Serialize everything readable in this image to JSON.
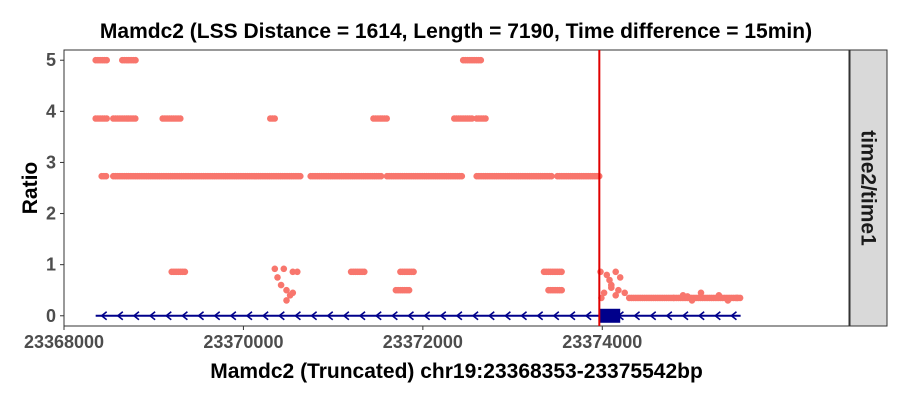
{
  "chart_data": {
    "type": "scatter",
    "title": "Mamdc2 (LSS Distance = 1614, Length = 7190, Time difference = 15min)",
    "xlabel": "Mamdc2 (Truncated) chr19:23368353-23375542bp",
    "ylabel": "Ratio",
    "facet_label": "time2/time1",
    "xlim": [
      23368000,
      23376750
    ],
    "ylim": [
      -0.2,
      5.2
    ],
    "x_ticks": [
      23368000,
      23370000,
      23372000,
      23374000
    ],
    "x_tick_labels": [
      "23368000",
      "23370000",
      "23372000",
      "23374000"
    ],
    "y_ticks": [
      0,
      1,
      2,
      3,
      4,
      5
    ],
    "y_tick_labels": [
      "0",
      "1",
      "2",
      "3",
      "4",
      "5"
    ],
    "grid": false,
    "colors": {
      "points": "#f8766d",
      "vline": "#e00000",
      "gene": "#00008b",
      "strip_bg": "#d9d9d9",
      "tick_text": "#4d4d4d"
    },
    "vline_x": 23373967,
    "gene": {
      "start": 23368353,
      "end": 23375542,
      "y": 0,
      "strand": "-",
      "exon": {
        "start": 23373967,
        "end": 23374200
      }
    },
    "series": [
      {
        "segments": [
          {
            "x0": 23368353,
            "x1": 23368500,
            "y": 5.0
          },
          {
            "x0": 23368650,
            "x1": 23368800,
            "y": 5.0
          },
          {
            "x0": 23368353,
            "x1": 23368500,
            "y": 3.86
          },
          {
            "x0": 23368550,
            "x1": 23368800,
            "y": 3.86
          },
          {
            "x0": 23369100,
            "x1": 23369300,
            "y": 3.86
          },
          {
            "x0": 23370300,
            "x1": 23370350,
            "y": 3.86
          },
          {
            "x0": 23371450,
            "x1": 23371600,
            "y": 3.86
          },
          {
            "x0": 23372350,
            "x1": 23372550,
            "y": 3.86
          },
          {
            "x0": 23372600,
            "x1": 23372700,
            "y": 3.86
          },
          {
            "x0": 23372450,
            "x1": 23372650,
            "y": 5.0
          },
          {
            "x0": 23368420,
            "x1": 23368470,
            "y": 2.73
          },
          {
            "x0": 23368550,
            "x1": 23370650,
            "y": 2.73
          },
          {
            "x0": 23370750,
            "x1": 23371550,
            "y": 2.73
          },
          {
            "x0": 23371600,
            "x1": 23372450,
            "y": 2.73
          },
          {
            "x0": 23372600,
            "x1": 23373450,
            "y": 2.73
          },
          {
            "x0": 23373500,
            "x1": 23373967,
            "y": 2.73
          },
          {
            "x0": 23369200,
            "x1": 23369350,
            "y": 0.86
          },
          {
            "x0": 23371200,
            "x1": 23371350,
            "y": 0.86
          },
          {
            "x0": 23371750,
            "x1": 23371900,
            "y": 0.86
          },
          {
            "x0": 23373350,
            "x1": 23373550,
            "y": 0.86
          },
          {
            "x0": 23371700,
            "x1": 23371850,
            "y": 0.5
          },
          {
            "x0": 23373400,
            "x1": 23373550,
            "y": 0.5
          },
          {
            "x0": 23374300,
            "x1": 23374800,
            "y": 0.35
          },
          {
            "x0": 23374800,
            "x1": 23375542,
            "y": 0.35
          }
        ],
        "points": [
          [
            23370350,
            0.92
          ],
          [
            23370450,
            0.92
          ],
          [
            23370550,
            0.86
          ],
          [
            23370380,
            0.75
          ],
          [
            23370420,
            0.6
          ],
          [
            23370480,
            0.5
          ],
          [
            23370520,
            0.4
          ],
          [
            23370480,
            0.3
          ],
          [
            23370550,
            0.45
          ],
          [
            23370600,
            0.86
          ],
          [
            23373980,
            0.86
          ],
          [
            23374050,
            0.8
          ],
          [
            23374150,
            0.86
          ],
          [
            23374080,
            0.7
          ],
          [
            23374200,
            0.75
          ],
          [
            23374100,
            0.6
          ],
          [
            23374180,
            0.5
          ],
          [
            23374020,
            0.45
          ],
          [
            23373990,
            0.35
          ],
          [
            23374250,
            0.45
          ],
          [
            23374100,
            0.55
          ],
          [
            23374150,
            0.4
          ],
          [
            23375300,
            0.4
          ],
          [
            23375400,
            0.3
          ],
          [
            23375500,
            0.35
          ],
          [
            23375000,
            0.3
          ],
          [
            23374900,
            0.4
          ],
          [
            23375100,
            0.45
          ],
          [
            23374950,
            0.38
          ]
        ]
      }
    ]
  }
}
